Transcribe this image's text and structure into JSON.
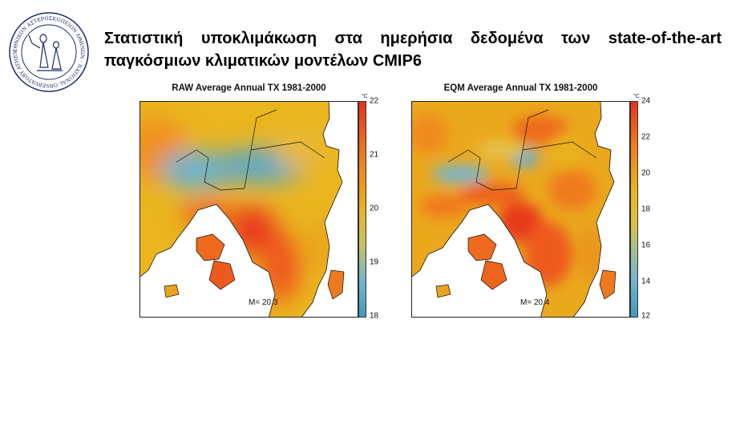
{
  "logo": {
    "ring_text": "ΕΘΝΙΚΟΝ ΑΣΤΕΡΟΣΚΟΠΕΙΟΝ ΑΘΗΝΩΝ · NATIONAL OBSERVATORY ATHENS",
    "icon": "observatory-seal-icon"
  },
  "slide": {
    "title_line1": "Στατιστική υποκλιμάκωση στα ημερήσια δεδομένα των state-of-the-art",
    "title_line2": "παγκόσμιων κλιματικών μοντέλων CMIP6"
  },
  "panels": [
    {
      "title": "RAW Average Annual TX 1981-2000",
      "mean_label": "M= 20.3",
      "unit": "°C",
      "ticks": [
        "22",
        "21",
        "20",
        "19",
        "18"
      ],
      "colorbar_range": [
        18,
        22
      ]
    },
    {
      "title": "EQM Average Annual TX 1981-2000",
      "mean_label": "M= 20.4",
      "unit": "°C",
      "ticks": [
        "24",
        "22",
        "20",
        "18",
        "16",
        "14",
        "12"
      ],
      "colorbar_range": [
        12,
        24
      ]
    }
  ],
  "colors": {
    "hot": "#e8321e",
    "warm": "#f07a1a",
    "mild": "#e9b21c",
    "cool": "#7ab5cc",
    "cold": "#3d9bbd"
  }
}
